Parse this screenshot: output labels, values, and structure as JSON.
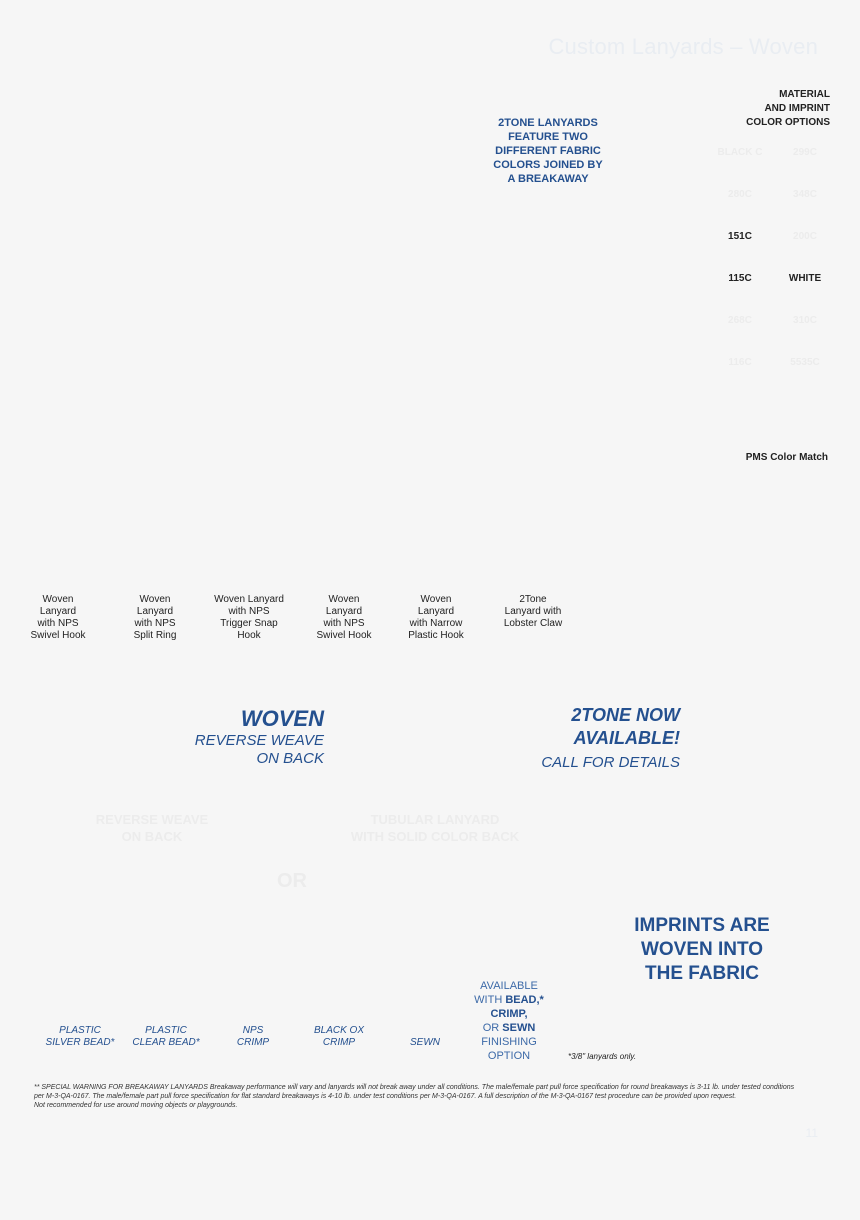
{
  "header": {
    "title": "Custom Lanyards – Woven"
  },
  "material": {
    "heading_line1": "MATERIAL",
    "heading_line2": "AND IMPRINT",
    "heading_line3": "COLOR OPTIONS",
    "colors": [
      "BLACK C",
      "299C",
      "280C",
      "348C",
      "151C",
      "200C",
      "115C",
      "WHITE",
      "268C",
      "310C",
      "116C",
      "5535C"
    ],
    "pms_match": "PMS Color Match"
  },
  "twotone_note": {
    "line1": "2TONE LANYARDS",
    "line2": "FEATURE TWO",
    "line3": "DIFFERENT FABRIC",
    "line4": "COLORS JOINED BY",
    "line5": "A BREAKAWAY"
  },
  "products": [
    {
      "line1": "Woven",
      "line2": "Lanyard",
      "line3": "with NPS",
      "line4": "Swivel Hook"
    },
    {
      "line1": "Woven",
      "line2": "Lanyard",
      "line3": "with NPS",
      "line4": "Split Ring"
    },
    {
      "line1": "Woven  Lanyard",
      "line2": "with NPS",
      "line3": "Trigger Snap",
      "line4": "Hook"
    },
    {
      "line1": "Woven",
      "line2": "Lanyard",
      "line3": "with NPS",
      "line4": "Swivel Hook"
    },
    {
      "line1": "Woven",
      "line2": "Lanyard",
      "line3": "with Narrow",
      "line4": "Plastic Hook"
    },
    {
      "line1": "2Tone",
      "line2": "Lanyard with",
      "line3": "Lobster Claw",
      "line4": ""
    }
  ],
  "woven": {
    "title": "WOVEN",
    "sub1": "REVERSE WEAVE",
    "sub2": "ON BACK"
  },
  "twotone": {
    "title1": "2TONE NOW",
    "title2": "AVAILABLE!",
    "sub": "CALL FOR DETAILS"
  },
  "backs": {
    "reverse_line1": "REVERSE WEAVE",
    "reverse_line2": "ON BACK",
    "tubular_line1": "TUBULAR LANYARD",
    "tubular_line2": "WITH SOLID COLOR BACK",
    "or": "OR"
  },
  "imprints": {
    "line1": "IMPRINTS ARE",
    "line2": "WOVEN INTO",
    "line3": "THE FABRIC"
  },
  "finishes": [
    {
      "line1": "PLASTIC",
      "line2": "SILVER BEAD*"
    },
    {
      "line1": "PLASTIC",
      "line2": "CLEAR BEAD*"
    },
    {
      "line1": "NPS",
      "line2": "CRIMP"
    },
    {
      "line1": "BLACK OX",
      "line2": "CRIMP"
    },
    {
      "line1": "",
      "line2": "SEWN"
    }
  ],
  "finishing_note": {
    "line1": "AVAILABLE",
    "with": "WITH ",
    "bead": "BEAD,*",
    "crimp": "CRIMP,",
    "or": "OR ",
    "sewn": "SEWN",
    "finishing": "FINISHING",
    "option": "OPTION",
    "only": "*3/8\" lanyards only."
  },
  "warning": {
    "line1": "**  SPECIAL WARNING FOR BREAKAWAY LANYARDS    Breakaway performance will vary and lanyards will not break away under all conditions. The male/female part pull force specification for round breakaways is 3-11 lb. under tested conditions",
    "line2": "per M-3-QA-0167. The male/female part pull force specification for flat standard breakaways is 4-10 lb. under test conditions per M-3-QA-0167. A full description of the M-3-QA-0167 test procedure can be provided upon request.",
    "line3": "Not recommended for use around moving objects or playgrounds."
  },
  "page_number": "11"
}
